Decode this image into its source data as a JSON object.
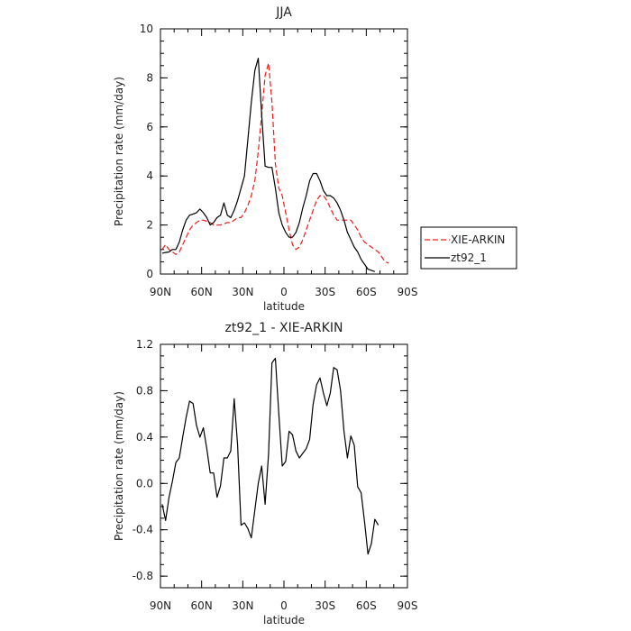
{
  "chart_data": [
    {
      "type": "line",
      "title": "JJA",
      "xlabel": "latitude",
      "ylabel": "Precipitation rate (mm/day)",
      "xlim": [
        -90,
        90
      ],
      "ylim": [
        0,
        10
      ],
      "xticks": [
        {
          "value": -90,
          "label": "90N"
        },
        {
          "value": -60,
          "label": "60N"
        },
        {
          "value": -30,
          "label": "30N"
        },
        {
          "value": 0,
          "label": "0"
        },
        {
          "value": 30,
          "label": "30S"
        },
        {
          "value": 60,
          "label": "60S"
        },
        {
          "value": 90,
          "label": "90S"
        }
      ],
      "yticks": [
        0,
        2,
        4,
        6,
        8,
        10
      ],
      "grid": false,
      "legend": "right",
      "series": [
        {
          "name": "XIE-ARKIN",
          "color": "#e8201a",
          "dash": "dashed",
          "points": [
            [
              -88.75,
              1.0
            ],
            [
              -86.25,
              1.2
            ],
            [
              -83.75,
              1.0
            ],
            [
              -81.25,
              0.9
            ],
            [
              -78.75,
              0.8
            ],
            [
              -76.25,
              0.9
            ],
            [
              -73.75,
              1.2
            ],
            [
              -71.25,
              1.5
            ],
            [
              -68.75,
              1.8
            ],
            [
              -66.25,
              2.0
            ],
            [
              -63.75,
              2.1
            ],
            [
              -61.25,
              2.2
            ],
            [
              -58.75,
              2.2
            ],
            [
              -56.25,
              2.15
            ],
            [
              -53.75,
              2.1
            ],
            [
              -51.25,
              2.0
            ],
            [
              -48.75,
              2.0
            ],
            [
              -46.25,
              2.0
            ],
            [
              -43.75,
              2.05
            ],
            [
              -41.25,
              2.1
            ],
            [
              -38.75,
              2.1
            ],
            [
              -36.25,
              2.2
            ],
            [
              -33.75,
              2.3
            ],
            [
              -31.25,
              2.3
            ],
            [
              -28.75,
              2.5
            ],
            [
              -26.25,
              2.8
            ],
            [
              -23.75,
              3.2
            ],
            [
              -21.25,
              3.8
            ],
            [
              -18.75,
              5.0
            ],
            [
              -16.25,
              6.5
            ],
            [
              -13.75,
              8.1
            ],
            [
              -11.25,
              8.6
            ],
            [
              -8.75,
              7.0
            ],
            [
              -6.25,
              4.5
            ],
            [
              -3.75,
              3.5
            ],
            [
              -1.25,
              3.2
            ],
            [
              1.25,
              2.5
            ],
            [
              3.75,
              1.8
            ],
            [
              6.25,
              1.2
            ],
            [
              8.75,
              1.0
            ],
            [
              11.25,
              1.1
            ],
            [
              13.75,
              1.4
            ],
            [
              16.25,
              1.8
            ],
            [
              18.75,
              2.2
            ],
            [
              21.25,
              2.6
            ],
            [
              23.75,
              3.0
            ],
            [
              26.25,
              3.2
            ],
            [
              28.75,
              3.2
            ],
            [
              31.25,
              3.0
            ],
            [
              33.75,
              2.7
            ],
            [
              36.25,
              2.4
            ],
            [
              38.75,
              2.2
            ],
            [
              41.25,
              2.2
            ],
            [
              43.75,
              2.2
            ],
            [
              46.25,
              2.2
            ],
            [
              48.75,
              2.2
            ],
            [
              51.25,
              2.0
            ],
            [
              53.75,
              1.8
            ],
            [
              56.25,
              1.5
            ],
            [
              58.75,
              1.3
            ],
            [
              61.25,
              1.2
            ],
            [
              63.75,
              1.1
            ],
            [
              66.25,
              1.0
            ],
            [
              68.75,
              0.9
            ],
            [
              71.25,
              0.7
            ],
            [
              73.75,
              0.5
            ],
            [
              76.25,
              0.45
            ]
          ]
        },
        {
          "name": "zt92_1",
          "color": "#000000",
          "dash": "solid",
          "points": [
            [
              -88.75,
              0.85
            ],
            [
              -86.25,
              0.88
            ],
            [
              -83.75,
              0.9
            ],
            [
              -81.25,
              1.0
            ],
            [
              -78.75,
              1.0
            ],
            [
              -76.25,
              1.3
            ],
            [
              -73.75,
              1.8
            ],
            [
              -71.25,
              2.2
            ],
            [
              -68.75,
              2.4
            ],
            [
              -66.25,
              2.45
            ],
            [
              -63.75,
              2.5
            ],
            [
              -61.25,
              2.65
            ],
            [
              -58.75,
              2.5
            ],
            [
              -56.25,
              2.3
            ],
            [
              -53.75,
              2.0
            ],
            [
              -51.25,
              2.1
            ],
            [
              -48.75,
              2.3
            ],
            [
              -46.25,
              2.4
            ],
            [
              -43.75,
              2.9
            ],
            [
              -41.25,
              2.4
            ],
            [
              -38.75,
              2.3
            ],
            [
              -36.25,
              2.6
            ],
            [
              -33.75,
              3.0
            ],
            [
              -31.25,
              3.5
            ],
            [
              -28.75,
              4.0
            ],
            [
              -26.25,
              5.5
            ],
            [
              -23.75,
              7.0
            ],
            [
              -21.25,
              8.3
            ],
            [
              -18.75,
              8.8
            ],
            [
              -16.25,
              6.5
            ],
            [
              -13.75,
              4.4
            ],
            [
              -11.25,
              4.35
            ],
            [
              -8.75,
              4.35
            ],
            [
              -6.25,
              3.5
            ],
            [
              -3.75,
              2.5
            ],
            [
              -1.25,
              2.0
            ],
            [
              1.25,
              1.7
            ],
            [
              3.75,
              1.5
            ],
            [
              6.25,
              1.5
            ],
            [
              8.75,
              1.7
            ],
            [
              11.25,
              2.1
            ],
            [
              13.75,
              2.7
            ],
            [
              16.25,
              3.2
            ],
            [
              18.75,
              3.8
            ],
            [
              21.25,
              4.1
            ],
            [
              23.75,
              4.1
            ],
            [
              26.25,
              3.8
            ],
            [
              28.75,
              3.4
            ],
            [
              31.25,
              3.2
            ],
            [
              33.75,
              3.2
            ],
            [
              36.25,
              3.1
            ],
            [
              38.75,
              2.9
            ],
            [
              41.25,
              2.6
            ],
            [
              43.75,
              2.2
            ],
            [
              46.25,
              1.7
            ],
            [
              48.75,
              1.4
            ],
            [
              51.25,
              1.1
            ],
            [
              53.75,
              0.9
            ],
            [
              56.25,
              0.6
            ],
            [
              58.75,
              0.4
            ],
            [
              61.25,
              0.2
            ],
            [
              63.75,
              0.15
            ],
            [
              66.25,
              0.1
            ]
          ]
        }
      ]
    },
    {
      "type": "line",
      "title": "zt92_1 - XIE-ARKIN",
      "xlabel": "latitude",
      "ylabel": "Precipitation rate (mm/day)",
      "xlim": [
        -90,
        90
      ],
      "ylim": [
        -0.9,
        1.2
      ],
      "xticks": [
        {
          "value": -90,
          "label": "90N"
        },
        {
          "value": -60,
          "label": "60N"
        },
        {
          "value": -30,
          "label": "30N"
        },
        {
          "value": 0,
          "label": "0"
        },
        {
          "value": 30,
          "label": "30S"
        },
        {
          "value": 60,
          "label": "60S"
        },
        {
          "value": 90,
          "label": "90S"
        }
      ],
      "yticks": [
        {
          "value": 1.2,
          "label": "1.2"
        },
        {
          "value": 0.8,
          "label": "0.8"
        },
        {
          "value": 0.4,
          "label": "0.4"
        },
        {
          "value": 0.0,
          "label": "0.0"
        },
        {
          "value": -0.4,
          "label": "-0.4"
        },
        {
          "value": -0.8,
          "label": "-0.8"
        }
      ],
      "grid": false,
      "series": [
        {
          "color": "#000000",
          "dash": "solid",
          "points": [
            [
              -88.75,
              -0.18
            ],
            [
              -86.25,
              -0.32
            ],
            [
              -83.75,
              -0.12
            ],
            [
              -81.25,
              0.02
            ],
            [
              -78.75,
              0.18
            ],
            [
              -76.25,
              0.22
            ],
            [
              -73.75,
              0.4
            ],
            [
              -71.25,
              0.57
            ],
            [
              -68.75,
              0.71
            ],
            [
              -66.25,
              0.69
            ],
            [
              -63.75,
              0.5
            ],
            [
              -61.25,
              0.4
            ],
            [
              -58.75,
              0.48
            ],
            [
              -56.25,
              0.3
            ],
            [
              -53.75,
              0.09
            ],
            [
              -51.25,
              0.09
            ],
            [
              -48.75,
              -0.12
            ],
            [
              -46.25,
              -0.02
            ],
            [
              -43.75,
              0.22
            ],
            [
              -41.25,
              0.22
            ],
            [
              -38.75,
              0.28
            ],
            [
              -36.25,
              0.73
            ],
            [
              -33.75,
              0.33
            ],
            [
              -31.25,
              -0.36
            ],
            [
              -28.75,
              -0.34
            ],
            [
              -26.25,
              -0.39
            ],
            [
              -23.75,
              -0.47
            ],
            [
              -21.25,
              -0.23
            ],
            [
              -18.75,
              0.0
            ],
            [
              -16.25,
              0.15
            ],
            [
              -13.75,
              -0.18
            ],
            [
              -11.25,
              0.25
            ],
            [
              -8.75,
              1.04
            ],
            [
              -6.25,
              1.08
            ],
            [
              -3.75,
              0.6
            ],
            [
              -1.25,
              0.15
            ],
            [
              1.25,
              0.19
            ],
            [
              3.75,
              0.45
            ],
            [
              6.25,
              0.42
            ],
            [
              8.75,
              0.28
            ],
            [
              11.25,
              0.22
            ],
            [
              13.75,
              0.26
            ],
            [
              16.25,
              0.3
            ],
            [
              18.75,
              0.38
            ],
            [
              21.25,
              0.68
            ],
            [
              23.75,
              0.85
            ],
            [
              26.25,
              0.91
            ],
            [
              28.75,
              0.78
            ],
            [
              31.25,
              0.67
            ],
            [
              33.75,
              0.78
            ],
            [
              36.25,
              1.0
            ],
            [
              38.75,
              0.98
            ],
            [
              41.25,
              0.8
            ],
            [
              43.75,
              0.45
            ],
            [
              46.25,
              0.22
            ],
            [
              48.75,
              0.41
            ],
            [
              51.25,
              0.33
            ],
            [
              53.75,
              -0.03
            ],
            [
              56.25,
              -0.08
            ],
            [
              58.75,
              -0.33
            ],
            [
              61.25,
              -0.61
            ],
            [
              63.75,
              -0.52
            ],
            [
              66.25,
              -0.31
            ],
            [
              68.75,
              -0.36
            ]
          ]
        }
      ]
    }
  ]
}
